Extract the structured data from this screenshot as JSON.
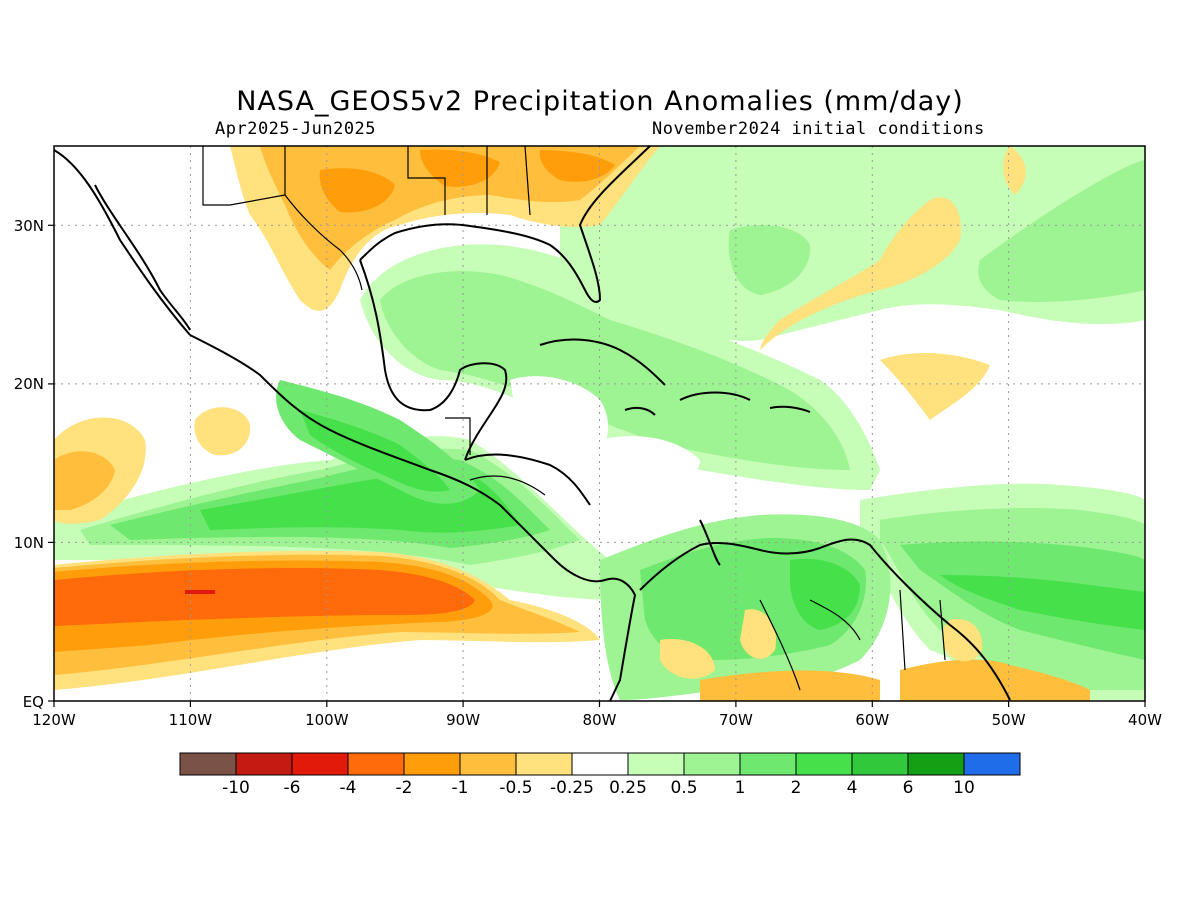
{
  "title": "NASA_GEOS5v2 Precipitation Anomalies (mm/day)",
  "subtitle_left": "Apr2025-Jun2025",
  "subtitle_right": "November2024 initial conditions",
  "map": {
    "lon_ticks": [
      "120W",
      "110W",
      "100W",
      "90W",
      "80W",
      "70W",
      "60W",
      "50W",
      "40W"
    ],
    "lat_ticks": [
      "30N",
      "20N",
      "10N",
      "EQ"
    ],
    "extent": {
      "lon": [
        -120,
        -40
      ],
      "lat": [
        0,
        35
      ]
    }
  },
  "colorbar": {
    "colors": [
      "#7a5248",
      "#c31a12",
      "#e21a0a",
      "#ff6a0a",
      "#ff9e0a",
      "#ffbe3c",
      "#ffe17d",
      "#ffffff",
      "#c6fdb7",
      "#9ef393",
      "#6ee86e",
      "#46e04b",
      "#32c83c",
      "#14a014",
      "#1f6de8"
    ],
    "labels": [
      "-10",
      "-6",
      "-4",
      "-2",
      "-1",
      "-0.5",
      "-0.25",
      "0.25",
      "0.5",
      "1",
      "2",
      "4",
      "6",
      "10"
    ]
  }
}
